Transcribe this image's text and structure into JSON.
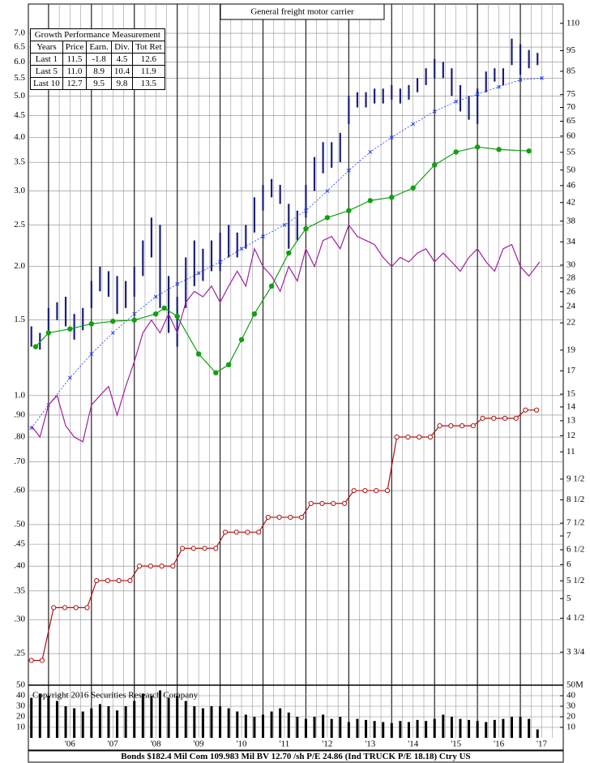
{
  "chart_data": {
    "type": "stock",
    "title": "General freight motor carrier",
    "log_scale": true,
    "grid": true,
    "xlim": [
      2005.53,
      2018.0
    ],
    "xticks": [
      {
        "value": 2006.5,
        "label": "'06"
      },
      {
        "value": 2007.5,
        "label": "'07"
      },
      {
        "value": 2008.5,
        "label": "'08"
      },
      {
        "value": 2009.5,
        "label": "'09"
      },
      {
        "value": 2010.5,
        "label": "'10"
      },
      {
        "value": 2011.5,
        "label": "'11"
      },
      {
        "value": 2012.5,
        "label": "'12"
      },
      {
        "value": 2013.5,
        "label": "'13"
      },
      {
        "value": 2014.5,
        "label": "'14"
      },
      {
        "value": 2015.5,
        "label": "'15"
      },
      {
        "value": 2016.5,
        "label": "'16"
      },
      {
        "value": 2017.5,
        "label": "'17"
      }
    ],
    "ylim": [
      0.211,
      8.19
    ],
    "yticks": [
      {
        "value": 7,
        "label": "7.0"
      },
      6.5,
      {
        "value": 6,
        "label": "6.0"
      },
      5.5,
      {
        "value": 5,
        "label": "5.0"
      },
      4.5,
      {
        "value": 4,
        "label": "4.0"
      },
      3.5,
      {
        "value": 3,
        "label": "3.0"
      },
      2.5,
      {
        "value": 2,
        "label": "2.0"
      },
      1.5,
      {
        "value": 1,
        "label": "1.0"
      },
      {
        "value": 0.9,
        "label": ".90"
      },
      {
        "value": 0.8,
        "label": ".80"
      },
      {
        "value": 0.7,
        "label": ".70"
      },
      {
        "value": 0.6,
        "label": ".60"
      },
      {
        "value": 0.5,
        "label": ".50"
      },
      {
        "value": 0.45,
        "label": ".45"
      },
      {
        "value": 0.4,
        "label": ".40"
      },
      {
        "value": 0.35,
        "label": ".35"
      },
      {
        "value": 0.3,
        "label": ".30"
      },
      {
        "value": 0.25,
        "label": ".25"
      }
    ],
    "y2lim": [
      3.14,
      122
    ],
    "y2ticks": [
      110,
      95,
      85,
      75,
      70,
      65,
      60,
      55,
      50,
      46,
      42,
      38,
      34,
      30,
      28,
      26,
      24,
      22,
      19,
      17,
      15,
      14,
      13,
      12,
      11,
      {
        "value": 9.5,
        "label": "9 1/2"
      },
      {
        "value": 8.5,
        "label": "8 1/2"
      },
      {
        "value": 7.5,
        "label": "7 1/2"
      },
      7,
      {
        "value": 6.5,
        "label": "6 1/2"
      },
      6,
      {
        "value": 5.5,
        "label": "5 1/2"
      },
      5,
      {
        "value": 4.5,
        "label": "4 1/2"
      },
      {
        "value": 3.75,
        "label": "3 3/4"
      }
    ],
    "series": [
      {
        "type": "range",
        "color": "#1a1f7a",
        "x": [
          2005.6,
          2005.8,
          2006.0,
          2006.2,
          2006.4,
          2006.6,
          2006.8,
          2007.0,
          2007.2,
          2007.4,
          2007.6,
          2007.8,
          2008.0,
          2008.2,
          2008.4,
          2008.6,
          2008.8,
          2009.0,
          2009.2,
          2009.4,
          2009.6,
          2009.8,
          2010.0,
          2010.2,
          2010.4,
          2010.6,
          2010.8,
          2011.0,
          2011.2,
          2011.4,
          2011.6,
          2011.8,
          2012.0,
          2012.2,
          2012.4,
          2012.6,
          2012.8,
          2013.0,
          2013.2,
          2013.4,
          2013.6,
          2013.8,
          2014.0,
          2014.2,
          2014.4,
          2014.6,
          2014.8,
          2015.0,
          2015.2,
          2015.4,
          2015.6,
          2015.8,
          2016.0,
          2016.2,
          2016.4,
          2016.6,
          2016.8,
          2017.0,
          2017.2,
          2017.4
        ],
        "high": [
          1.45,
          1.4,
          1.6,
          1.65,
          1.7,
          1.55,
          1.6,
          1.85,
          2.0,
          1.95,
          1.9,
          1.85,
          2.0,
          2.3,
          2.6,
          2.5,
          1.9,
          1.7,
          2.1,
          2.3,
          2.2,
          2.3,
          2.4,
          2.5,
          2.4,
          2.5,
          2.9,
          3.1,
          3.2,
          3.1,
          2.8,
          2.7,
          3.1,
          3.6,
          3.9,
          3.9,
          4.1,
          5.0,
          5.1,
          5.1,
          5.2,
          5.2,
          5.3,
          5.2,
          5.3,
          5.5,
          5.8,
          6.1,
          6.0,
          5.8,
          5.3,
          5.0,
          5.2,
          5.7,
          5.8,
          5.8,
          6.8,
          6.6,
          6.4,
          6.3
        ],
        "low": [
          1.3,
          1.28,
          1.4,
          1.5,
          1.45,
          1.35,
          1.42,
          1.6,
          1.75,
          1.7,
          1.55,
          1.6,
          1.7,
          1.9,
          2.1,
          1.6,
          1.4,
          1.3,
          1.6,
          1.8,
          1.85,
          1.95,
          1.95,
          2.1,
          2.1,
          2.2,
          2.4,
          2.7,
          2.9,
          2.8,
          2.2,
          2.3,
          2.6,
          3.0,
          3.3,
          3.4,
          3.5,
          4.3,
          4.7,
          4.7,
          4.8,
          4.8,
          4.9,
          4.8,
          4.9,
          5.1,
          5.3,
          5.5,
          5.5,
          5.0,
          4.6,
          4.4,
          4.3,
          5.1,
          5.4,
          5.3,
          5.9,
          5.6,
          5.8,
          5.9
        ]
      },
      {
        "type": "line",
        "marker": "cross",
        "color": "#1e3cff",
        "x": [
          2005.6,
          2006.0,
          2006.5,
          2007.0,
          2007.5,
          2008.0,
          2008.5,
          2009.0,
          2009.5,
          2010.0,
          2010.5,
          2011.0,
          2011.5,
          2012.0,
          2012.5,
          2013.0,
          2013.5,
          2014.0,
          2014.5,
          2015.0,
          2015.5,
          2016.0,
          2016.5,
          2017.0,
          2017.5
        ],
        "values": [
          0.84,
          0.95,
          1.1,
          1.25,
          1.4,
          1.55,
          1.7,
          1.82,
          1.93,
          2.05,
          2.2,
          2.35,
          2.5,
          2.7,
          3.0,
          3.35,
          3.7,
          4.0,
          4.3,
          4.6,
          4.85,
          5.05,
          5.25,
          5.45,
          5.5
        ]
      },
      {
        "type": "line",
        "marker": "dot",
        "color": "#10a010",
        "x": [
          2005.7,
          2006.0,
          2006.5,
          2007.0,
          2007.5,
          2008.0,
          2008.5,
          2008.7,
          2009.0,
          2009.5,
          2009.9,
          2010.2,
          2010.5,
          2010.8,
          2011.2,
          2011.6,
          2012.0,
          2012.5,
          2013.0,
          2013.5,
          2014.0,
          2014.5,
          2015.0,
          2015.5,
          2016.0,
          2016.5,
          2017.2
        ],
        "values": [
          1.3,
          1.4,
          1.43,
          1.47,
          1.49,
          1.5,
          1.55,
          1.6,
          1.53,
          1.25,
          1.13,
          1.18,
          1.35,
          1.55,
          1.8,
          2.15,
          2.45,
          2.6,
          2.7,
          2.85,
          2.9,
          3.05,
          3.45,
          3.7,
          3.8,
          3.75,
          3.72
        ]
      },
      {
        "type": "line",
        "marker": "none",
        "color": "#a020a0",
        "x": [
          2005.6,
          2005.8,
          2006.0,
          2006.2,
          2006.4,
          2006.6,
          2006.8,
          2007.0,
          2007.2,
          2007.4,
          2007.6,
          2007.8,
          2008.0,
          2008.2,
          2008.4,
          2008.6,
          2008.8,
          2009.0,
          2009.2,
          2009.4,
          2009.6,
          2009.8,
          2010.0,
          2010.2,
          2010.4,
          2010.6,
          2010.8,
          2011.0,
          2011.2,
          2011.4,
          2011.6,
          2011.8,
          2012.0,
          2012.2,
          2012.4,
          2012.6,
          2012.8,
          2013.0,
          2013.2,
          2013.4,
          2013.6,
          2013.8,
          2014.0,
          2014.2,
          2014.4,
          2014.6,
          2014.8,
          2015.0,
          2015.2,
          2015.4,
          2015.6,
          2015.8,
          2016.0,
          2016.2,
          2016.4,
          2016.6,
          2016.8,
          2017.0,
          2017.2,
          2017.45
        ],
        "values": [
          0.85,
          0.8,
          0.95,
          1.0,
          0.85,
          0.8,
          0.78,
          0.95,
          1.0,
          1.05,
          0.9,
          1.05,
          1.2,
          1.4,
          1.5,
          1.4,
          1.55,
          1.4,
          1.65,
          1.75,
          1.7,
          1.8,
          1.65,
          1.8,
          1.95,
          1.8,
          2.2,
          2.0,
          1.9,
          1.75,
          2.0,
          1.85,
          2.2,
          2.0,
          2.3,
          2.35,
          2.2,
          2.5,
          2.35,
          2.3,
          2.25,
          2.1,
          2.0,
          2.1,
          2.05,
          2.15,
          2.2,
          2.05,
          2.15,
          2.05,
          1.95,
          2.1,
          2.2,
          2.05,
          1.95,
          2.2,
          2.25,
          2.0,
          1.9,
          2.05
        ]
      },
      {
        "type": "line",
        "marker": "ring",
        "color": "#b01010",
        "x": [
          2005.6,
          2005.85,
          2006.12,
          2006.38,
          2006.64,
          2006.9,
          2007.12,
          2007.38,
          2007.64,
          2007.9,
          2008.12,
          2008.38,
          2008.64,
          2008.9,
          2009.12,
          2009.38,
          2009.64,
          2009.9,
          2010.12,
          2010.38,
          2010.64,
          2010.9,
          2011.12,
          2011.38,
          2011.64,
          2011.9,
          2012.12,
          2012.38,
          2012.64,
          2012.9,
          2013.12,
          2013.38,
          2013.64,
          2013.9,
          2014.12,
          2014.38,
          2014.64,
          2014.9,
          2015.12,
          2015.38,
          2015.64,
          2015.9,
          2016.12,
          2016.38,
          2016.64,
          2016.9,
          2017.12,
          2017.38
        ],
        "values": [
          0.241,
          0.241,
          0.32,
          0.32,
          0.32,
          0.32,
          0.37,
          0.37,
          0.37,
          0.37,
          0.4,
          0.4,
          0.4,
          0.4,
          0.44,
          0.44,
          0.44,
          0.44,
          0.48,
          0.48,
          0.48,
          0.48,
          0.52,
          0.52,
          0.52,
          0.52,
          0.56,
          0.56,
          0.56,
          0.56,
          0.6,
          0.6,
          0.6,
          0.6,
          0.8,
          0.8,
          0.8,
          0.8,
          0.85,
          0.85,
          0.85,
          0.85,
          0.885,
          0.885,
          0.885,
          0.885,
          0.925,
          0.925
        ]
      }
    ],
    "volume": {
      "color": "#000000",
      "ylim": [
        0,
        50
      ],
      "yticks": [
        10,
        20,
        30,
        40,
        50
      ],
      "y2ticks": [
        10,
        20,
        30,
        40,
        {
          "value": 50,
          "label": "50M"
        }
      ],
      "values": [
        38,
        42,
        40,
        35,
        30,
        28,
        25,
        28,
        32,
        30,
        26,
        30,
        35,
        42,
        40,
        45,
        38,
        40,
        35,
        30,
        28,
        30,
        30,
        28,
        25,
        22,
        20,
        22,
        25,
        28,
        24,
        20,
        18,
        20,
        22,
        18,
        20,
        15,
        18,
        17,
        16,
        15,
        14,
        16,
        15,
        17,
        16,
        18,
        22,
        20,
        18,
        17,
        16,
        15,
        17,
        18,
        20,
        20,
        18,
        8
      ]
    },
    "table": {
      "title": "Growth Performance Measurement",
      "columns": [
        "Years",
        "Price",
        "Earn.",
        "Div.",
        "Tot Ret"
      ],
      "rows": [
        [
          "Last 1",
          "11.5",
          "-1.8",
          "4.5",
          "12.6"
        ],
        [
          "Last 5",
          "11.0",
          "8.9",
          "10.4",
          "11.9"
        ],
        [
          "Last 10",
          "12.7",
          "9.5",
          "9.8",
          "13.5"
        ]
      ]
    },
    "copyright": "Copyright 2016 Securities Research Company",
    "footer": "Bonds $182.4 Mil Com 109.983 Mil BV 12.70 /sh P/E 24.86 (Ind TRUCK P/E 18.18) Ctry US"
  }
}
